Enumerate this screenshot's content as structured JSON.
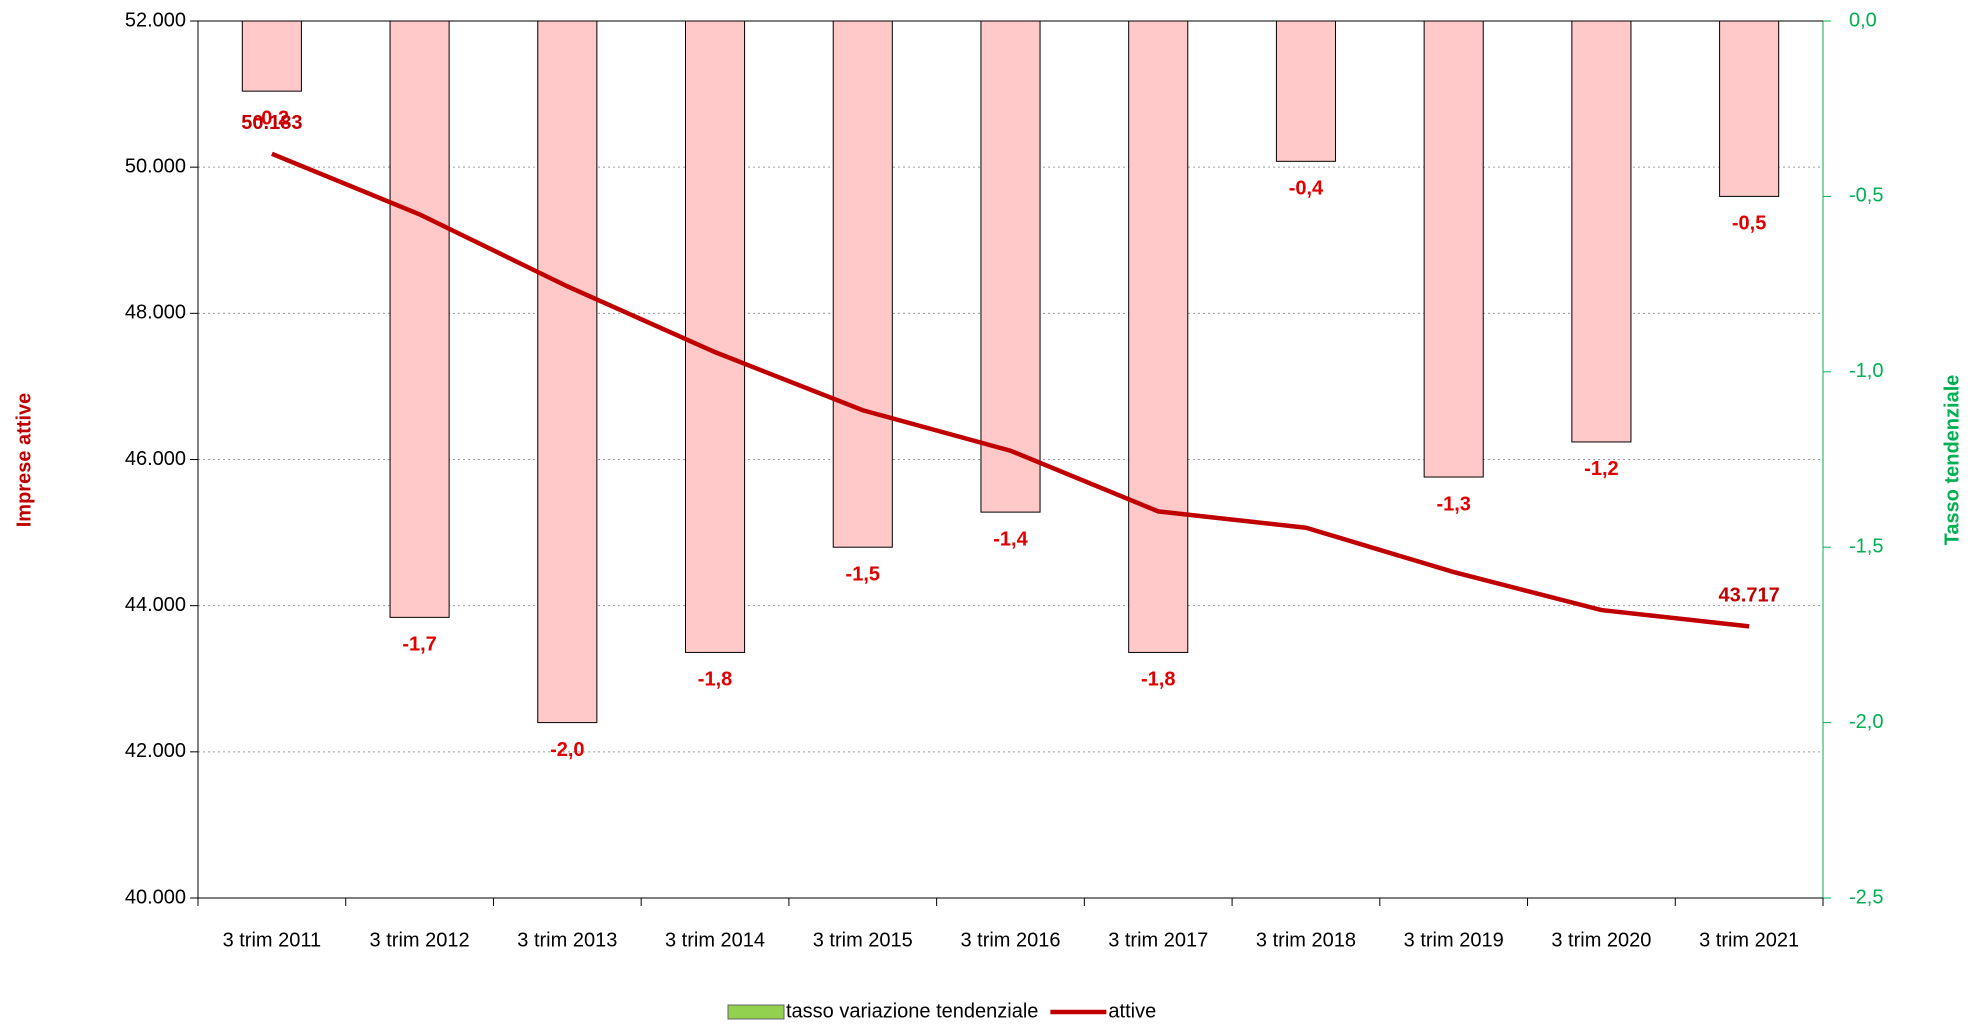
{
  "chart_data": {
    "type": "combo",
    "categories": [
      "3 trim 2011",
      "3 trim 2012",
      "3 trim 2013",
      "3 trim 2014",
      "3 trim 2015",
      "3 trim 2016",
      "3 trim 2017",
      "3 trim 2018",
      "3 trim 2019",
      "3 trim 2020",
      "3 trim 2021"
    ],
    "series": [
      {
        "name": "tasso variazione tendenziale",
        "type": "bar",
        "axis": "y2",
        "color": "#ffc9c9",
        "legend_color": "#92d050",
        "label_color": "#e00000",
        "values": [
          -0.2,
          -1.7,
          -2.0,
          -1.8,
          -1.5,
          -1.4,
          -1.8,
          -0.4,
          -1.3,
          -1.2,
          -0.5
        ],
        "value_labels": [
          "-0,2",
          "-1,7",
          "-2,0",
          "-1,8",
          "-1,5",
          "-1,4",
          "-1,8",
          "-0,4",
          "-1,3",
          "-1,2",
          "-0,5"
        ]
      },
      {
        "name": "attive",
        "type": "line",
        "axis": "y",
        "color": "#c00000",
        "values": [
          50183,
          49354,
          48369,
          47469,
          46674,
          46120,
          45290,
          45066,
          44460,
          43940,
          43717
        ],
        "value_labels": [
          "50.183",
          null,
          null,
          null,
          null,
          null,
          null,
          null,
          null,
          null,
          "43.717"
        ]
      }
    ],
    "y_label": "Imprese attive",
    "y_label_color": "#c00000",
    "y2_label": "Tasso tendenziale",
    "y2_label_color": "#00b050",
    "ylim": [
      40000,
      52000
    ],
    "yticks": [
      {
        "value": 40000,
        "label": "40.000"
      },
      {
        "value": 42000,
        "label": "42.000"
      },
      {
        "value": 44000,
        "label": "44.000"
      },
      {
        "value": 46000,
        "label": "46.000"
      },
      {
        "value": 48000,
        "label": "48.000"
      },
      {
        "value": 50000,
        "label": "50.000"
      },
      {
        "value": 52000,
        "label": "52.000"
      }
    ],
    "y2lim": [
      -2.5,
      0
    ],
    "y2ticks": [
      {
        "value": -2.5,
        "label": "-2,5"
      },
      {
        "value": -2.0,
        "label": "-2,0"
      },
      {
        "value": -1.5,
        "label": "-1,5"
      },
      {
        "value": -1.0,
        "label": "-1,0"
      },
      {
        "value": -0.5,
        "label": "-0,5"
      },
      {
        "value": 0,
        "label": "0,0"
      }
    ],
    "grid": true
  }
}
